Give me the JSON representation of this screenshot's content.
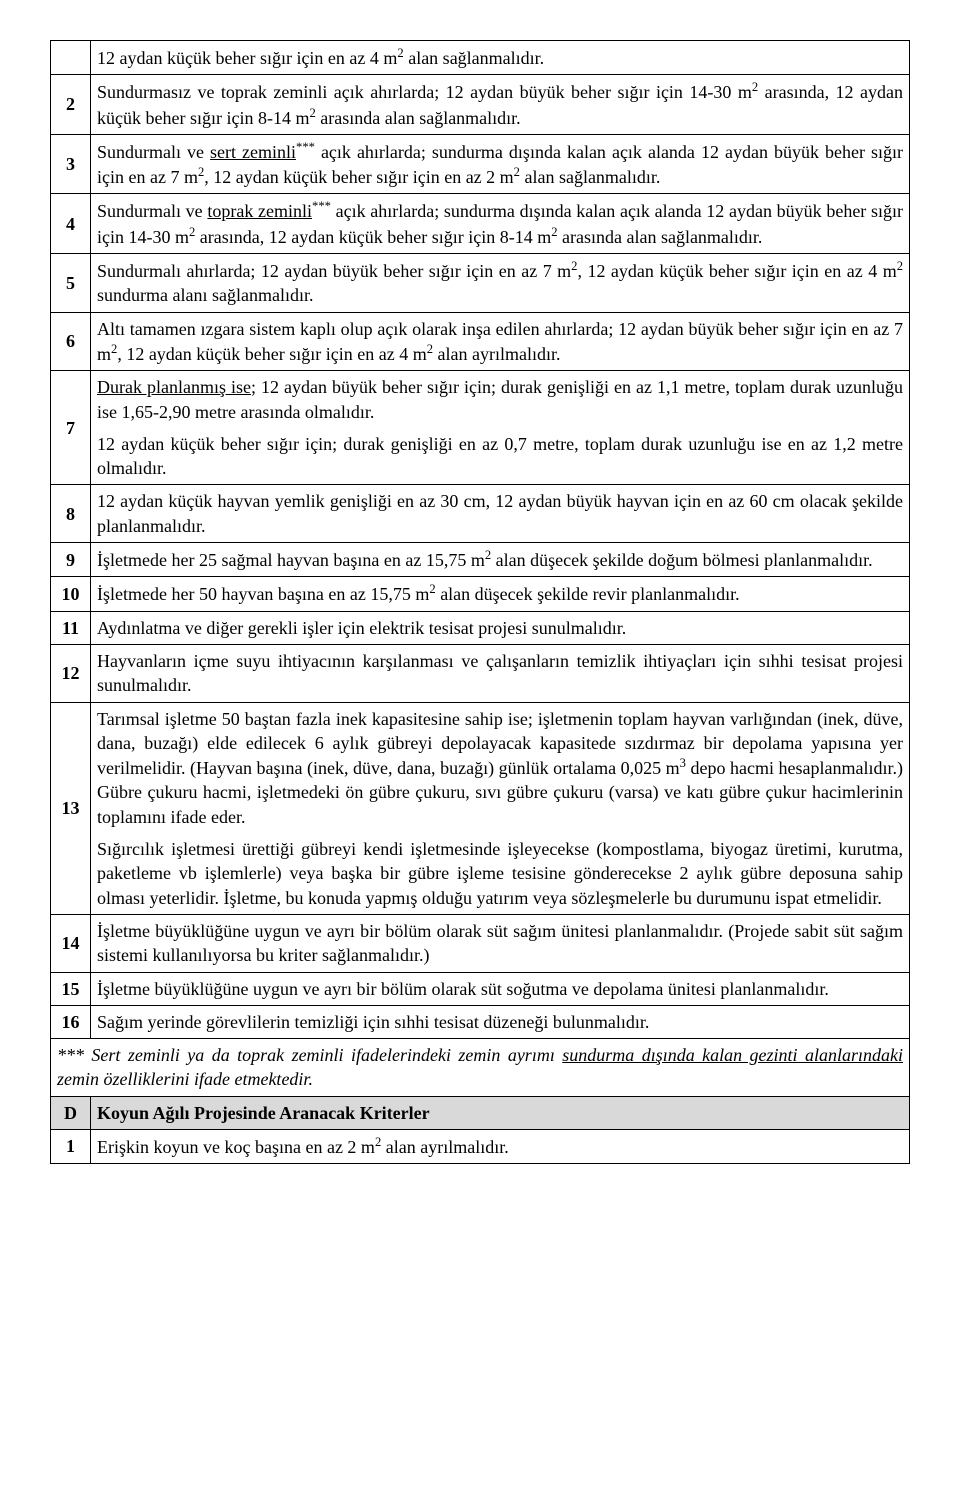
{
  "rows": [
    {
      "num": "",
      "segments": [
        {
          "t": "12 aydan küçük beher sığır için en az 4 m"
        },
        {
          "t": "2",
          "sup": true
        },
        {
          "t": " alan sağlanmalıdır."
        }
      ]
    },
    {
      "num": "2",
      "segments": [
        {
          "t": "Sundurmasız ve toprak zeminli açık ahırlarda; 12 aydan büyük beher sığır için 14-30 m"
        },
        {
          "t": "2",
          "sup": true
        },
        {
          "t": " arasında, 12 aydan küçük beher sığır için 8-14 m"
        },
        {
          "t": "2",
          "sup": true
        },
        {
          "t": " arasında alan sağlanmalıdır."
        }
      ]
    },
    {
      "num": "3",
      "segments": [
        {
          "t": "Sundurmalı ve "
        },
        {
          "t": "sert zeminli",
          "u": true
        },
        {
          "t": "***",
          "sup": true
        },
        {
          "t": " açık ahırlarda; sundurma dışında kalan açık alanda 12 aydan büyük beher sığır için en az 7 m"
        },
        {
          "t": "2",
          "sup": true
        },
        {
          "t": ", 12 aydan küçük beher sığır için en az 2 m"
        },
        {
          "t": "2",
          "sup": true
        },
        {
          "t": " alan sağlanmalıdır."
        }
      ]
    },
    {
      "num": "4",
      "segments": [
        {
          "t": "Sundurmalı ve "
        },
        {
          "t": "toprak zeminli",
          "u": true
        },
        {
          "t": "***",
          "sup": true
        },
        {
          "t": " açık ahırlarda; sundurma dışında kalan açık alanda 12 aydan büyük beher sığır için 14-30 m"
        },
        {
          "t": "2",
          "sup": true
        },
        {
          "t": " arasında, 12 aydan küçük beher sığır için 8-14 m"
        },
        {
          "t": "2",
          "sup": true
        },
        {
          "t": " arasında alan sağlanmalıdır."
        }
      ]
    },
    {
      "num": "5",
      "segments": [
        {
          "t": "Sundurmalı ahırlarda; 12 aydan büyük beher sığır için en az 7 m"
        },
        {
          "t": "2",
          "sup": true
        },
        {
          "t": ", 12 aydan küçük beher sığır için en az 4 m"
        },
        {
          "t": "2",
          "sup": true
        },
        {
          "t": " sundurma alanı sağlanmalıdır."
        }
      ]
    },
    {
      "num": "6",
      "segments": [
        {
          "t": "Altı tamamen ızgara sistem kaplı olup açık olarak inşa edilen ahırlarda; 12 aydan büyük beher sığır için en az 7 m"
        },
        {
          "t": "2",
          "sup": true
        },
        {
          "t": ", 12 aydan küçük beher sığır için en az 4 m"
        },
        {
          "t": "2",
          "sup": true
        },
        {
          "t": " alan ayrılmalıdır."
        }
      ]
    },
    {
      "num": "7",
      "paragraphs": [
        [
          {
            "t": "Durak planlanmış ise",
            "u": true
          },
          {
            "t": "; 12 aydan büyük beher sığır için; durak genişliği en az 1,1 metre, toplam durak uzunluğu ise 1,65-2,90 metre arasında olmalıdır."
          }
        ],
        [
          {
            "t": "12 aydan küçük beher sığır için; durak genişliği en az 0,7 metre, toplam durak uzunluğu ise en az 1,2 metre olmalıdır."
          }
        ]
      ]
    },
    {
      "num": "8",
      "segments": [
        {
          "t": "12 aydan küçük hayvan yemlik genişliği en az 30 cm, 12 aydan büyük hayvan için en az 60 cm olacak şekilde planlanmalıdır."
        }
      ]
    },
    {
      "num": "9",
      "segments": [
        {
          "t": "İşletmede her 25 sağmal hayvan başına en az 15,75 m"
        },
        {
          "t": "2",
          "sup": true
        },
        {
          "t": " alan düşecek şekilde doğum bölmesi planlanmalıdır."
        }
      ]
    },
    {
      "num": "10",
      "segments": [
        {
          "t": "İşletmede her 50 hayvan başına en az 15,75 m"
        },
        {
          "t": "2",
          "sup": true
        },
        {
          "t": " alan düşecek şekilde revir planlanmalıdır."
        }
      ]
    },
    {
      "num": "11",
      "segments": [
        {
          "t": "Aydınlatma ve diğer gerekli işler için elektrik tesisat projesi sunulmalıdır."
        }
      ]
    },
    {
      "num": "12",
      "segments": [
        {
          "t": "Hayvanların içme suyu ihtiyacının karşılanması ve çalışanların temizlik ihtiyaçları için sıhhi tesisat projesi sunulmalıdır."
        }
      ]
    },
    {
      "num": "13",
      "paragraphs": [
        [
          {
            "t": "Tarımsal işletme 50 baştan fazla inek kapasitesine sahip ise; işletmenin toplam hayvan varlığından (inek, düve, dana, buzağı)  elde edilecek 6 aylık gübreyi depolayacak kapasitede sızdırmaz bir depolama yapısına yer verilmelidir. (Hayvan başına (inek, düve, dana, buzağı)  günlük ortalama 0,025 m"
          },
          {
            "t": "3",
            "sup": true
          },
          {
            "t": " depo hacmi hesaplanmalıdır.) Gübre çukuru hacmi, işletmedeki ön gübre çukuru, sıvı gübre çukuru (varsa) ve katı gübre çukur hacimlerinin toplamını ifade eder."
          }
        ],
        [
          {
            "t": "Sığırcılık işletmesi ürettiği gübreyi kendi işletmesinde işleyecekse (kompostlama, biyogaz üretimi, kurutma, paketleme vb işlemlerle) veya başka bir gübre işleme tesisine gönderecekse 2 aylık gübre deposuna sahip olması yeterlidir. İşletme, bu konuda yapmış olduğu yatırım veya sözleşmelerle bu durumunu ispat etmelidir."
          }
        ]
      ]
    },
    {
      "num": "14",
      "segments": [
        {
          "t": "İşletme büyüklüğüne uygun ve ayrı bir bölüm olarak süt sağım ünitesi planlanmalıdır. (Projede sabit süt sağım sistemi kullanılıyorsa bu kriter sağlanmalıdır.)"
        }
      ]
    },
    {
      "num": "15",
      "segments": [
        {
          "t": "İşletme büyüklüğüne uygun ve ayrı bir bölüm olarak süt soğutma ve depolama ünitesi planlanmalıdır."
        }
      ]
    },
    {
      "num": "16",
      "segments": [
        {
          "t": "Sağım yerinde görevlilerin temizliği için sıhhi tesisat düzeneği bulunmalıdır."
        }
      ]
    }
  ],
  "footnote": [
    {
      "t": "*** Sert zeminli ya da toprak zeminli ifadelerindeki zemin ayrımı "
    },
    {
      "t": "sundurma dışında kalan gezinti alanlarındaki",
      "u": true
    },
    {
      "t": " zemin özelliklerini ifade etmektedir."
    }
  ],
  "sectionD": {
    "letter": "D",
    "title": "Koyun Ağılı Projesinde Aranacak Kriterler",
    "rows": [
      {
        "num": "1",
        "segments": [
          {
            "t": "Erişkin koyun ve koç başına en az 2 m"
          },
          {
            "t": "2",
            "sup": true
          },
          {
            "t": " alan ayrılmalıdır."
          }
        ]
      }
    ]
  }
}
